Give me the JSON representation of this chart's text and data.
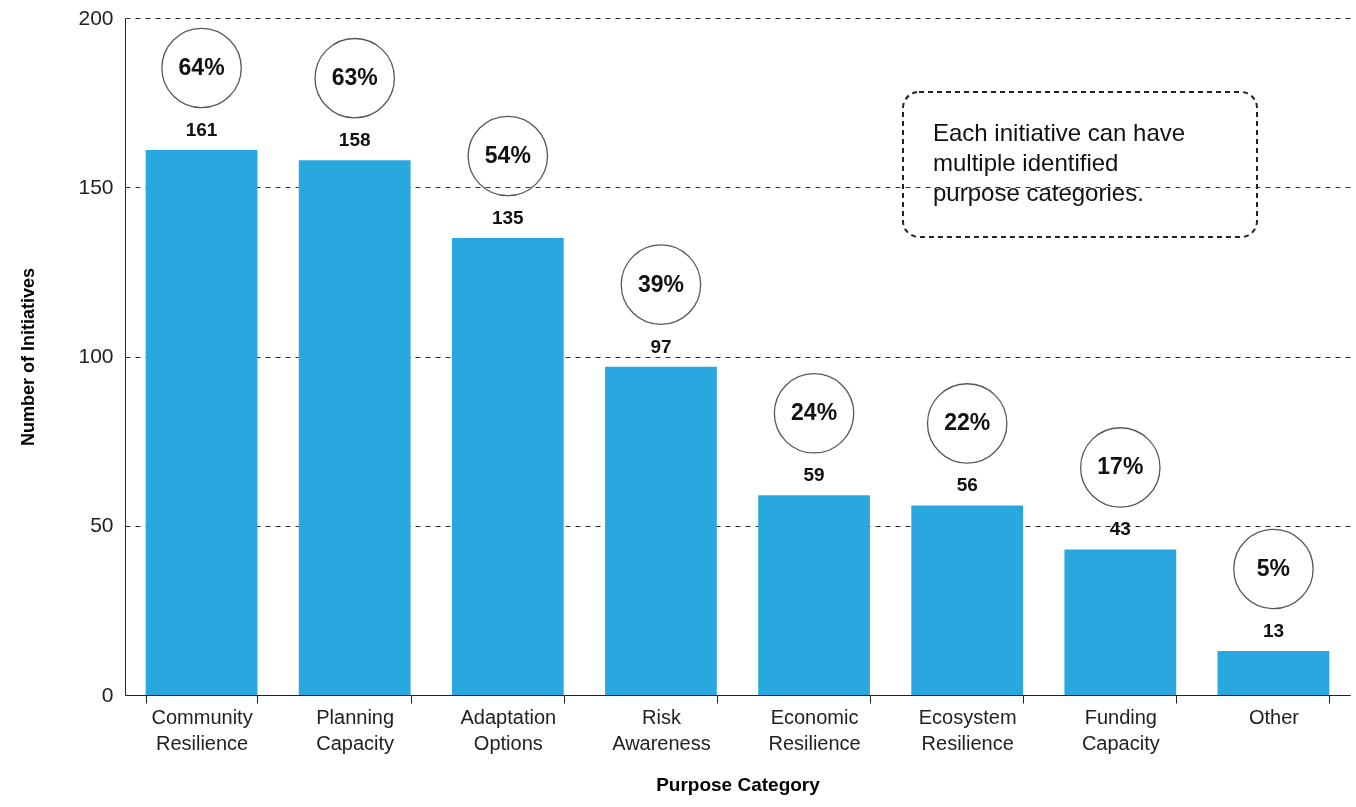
{
  "chart_data": {
    "type": "bar",
    "xlabel": "Purpose Category",
    "ylabel": "Number of Initiatives",
    "categories": [
      "Community Resilience",
      "Planning Capacity",
      "Adaptation Options",
      "Risk Awareness",
      "Economic Resilience",
      "Ecosystem Resilience",
      "Funding Capacity",
      "Other"
    ],
    "values": [
      161,
      158,
      135,
      97,
      59,
      56,
      43,
      13
    ],
    "color": "#29a8e0",
    "ylim": [
      0,
      200
    ],
    "yticks": [
      0,
      50,
      100,
      150,
      200
    ],
    "grid": "y",
    "data_labels": true,
    "annotations": [
      "64%",
      "63%",
      "54%",
      "39%",
      "24%",
      "22%",
      "17%",
      "5%",
      "Each initiative can have multiple identified purpose categories."
    ]
  }
}
